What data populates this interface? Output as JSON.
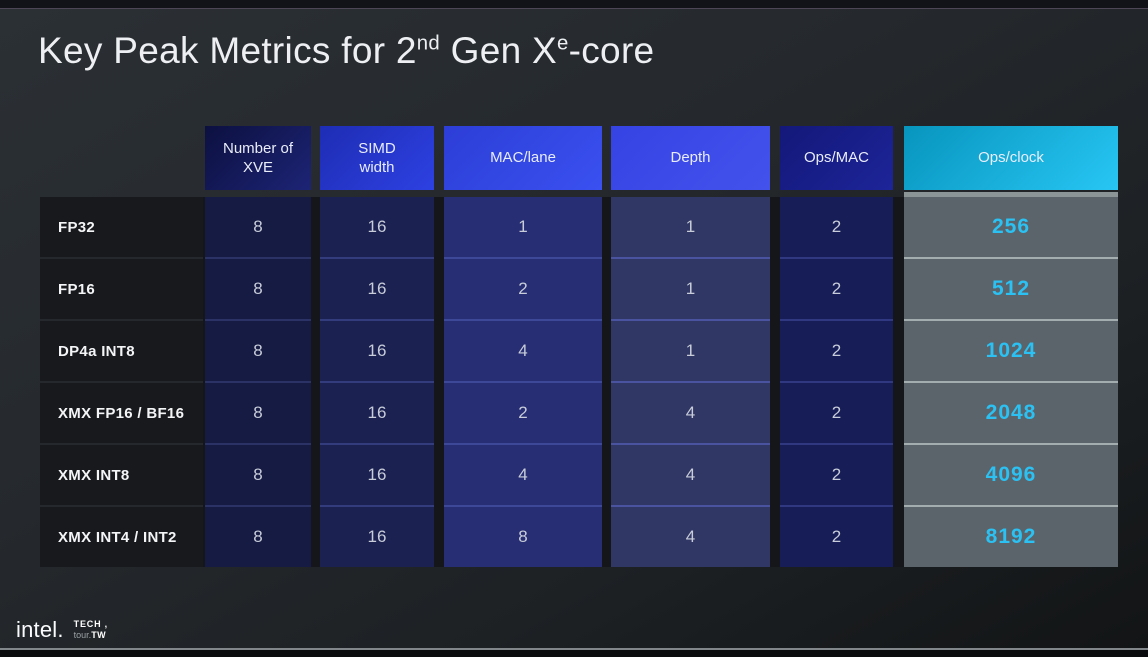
{
  "title": {
    "prefix": "Key Peak Metrics for 2",
    "sup1": "nd",
    "mid": " Gen X",
    "sup2": "e",
    "suffix": "-core"
  },
  "table": {
    "header_text_color": "#e9edf9",
    "value_text_color": "#c8cdd9",
    "accent_cyan": "#2bc1f2",
    "columns": [
      {
        "key": "metric",
        "header": null,
        "cell_bg": "#17191d",
        "separator": "#25282d"
      },
      {
        "key": "number_of_xve",
        "header": "Number of\nXVE",
        "header_bg_from": "#0c1040",
        "header_bg_to": "#1d2475",
        "cell_bg": "#161b43",
        "separator": "#2b3266"
      },
      {
        "key": "simd_width",
        "header": "SIMD\nwidth",
        "header_bg_from": "#1e2db4",
        "header_bg_to": "#2d41e2",
        "cell_bg": "#1b2151",
        "separator": "#333c7c"
      },
      {
        "key": "mac_per_lane",
        "header": "MAC/lane",
        "header_bg_from": "#2c3ed6",
        "header_bg_to": "#3a50f0",
        "cell_bg": "#272e74",
        "separator": "#3e4899"
      },
      {
        "key": "depth",
        "header": "Depth",
        "header_bg_from": "#3543e4",
        "header_bg_to": "#4452ec",
        "cell_bg": "#303765",
        "separator": "#4a53a0"
      },
      {
        "key": "ops_per_mac",
        "header": "Ops/MAC",
        "header_bg_from": "#131879",
        "header_bg_to": "#1d2498",
        "cell_bg": "#171d57",
        "separator": "#2f3880"
      },
      {
        "key": "ops_per_clock",
        "header": "Ops/clock",
        "header_bg_from": "#0795bd",
        "header_bg_to": "#28c6f4",
        "cell_bg": "#5b646b",
        "separator": "#a3adb0",
        "cap": "#8b9598",
        "value_color": "#2bc1f2",
        "value_bold": true
      }
    ],
    "rows": [
      {
        "label": "FP32",
        "values": [
          "8",
          "16",
          "1",
          "1",
          "2",
          "256"
        ]
      },
      {
        "label": "FP16",
        "values": [
          "8",
          "16",
          "2",
          "1",
          "2",
          "512"
        ]
      },
      {
        "label": "DP4a INT8",
        "values": [
          "8",
          "16",
          "4",
          "1",
          "2",
          "1024"
        ]
      },
      {
        "label": "XMX FP16 / BF16",
        "values": [
          "8",
          "16",
          "2",
          "4",
          "2",
          "2048"
        ]
      },
      {
        "label": "XMX INT8",
        "values": [
          "8",
          "16",
          "4",
          "4",
          "2",
          "4096"
        ]
      },
      {
        "label": "XMX INT4 / INT2",
        "values": [
          "8",
          "16",
          "8",
          "4",
          "2",
          "8192"
        ]
      }
    ]
  },
  "footer": {
    "intel": "intel.",
    "tech_line1": "TECH ,",
    "tour": "tour.",
    "tw": "TW"
  }
}
